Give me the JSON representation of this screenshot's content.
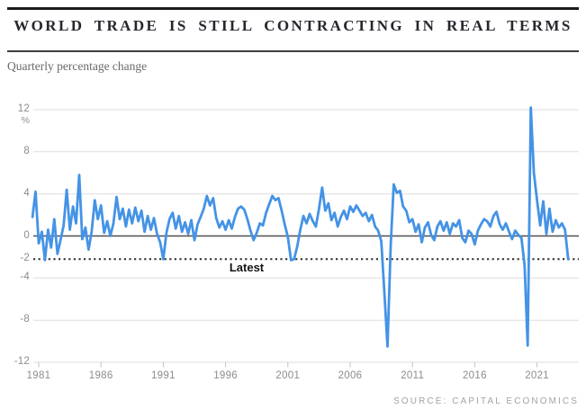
{
  "header": {
    "title": "WORLD TRADE IS STILL CONTRACTING IN REAL TERMS",
    "subtitle": "Quarterly percentage change"
  },
  "footer": {
    "source": "SOURCE: CAPITAL ECONOMICS"
  },
  "chart_data": {
    "type": "line",
    "title": "World trade is still contracting in real terms",
    "subtitle": "Quarterly percentage change",
    "xlabel": "",
    "ylabel": "%",
    "ylim": [
      -12,
      12
    ],
    "grid": true,
    "legend": "none",
    "x_axis": {
      "ticks": [
        1981,
        1986,
        1991,
        1996,
        2001,
        2006,
        2011,
        2016,
        2021
      ]
    },
    "y_axis": {
      "unit_label": "%",
      "ticks": [
        {
          "label": "12",
          "value": 12
        },
        {
          "label": "8",
          "value": 8
        },
        {
          "label": "4",
          "value": 4
        },
        {
          "label": "0",
          "value": 0
        },
        {
          "label": "-4",
          "value": -4
        },
        {
          "label": "-8",
          "value": -8
        },
        {
          "label": "-12",
          "value": -12
        }
      ]
    },
    "latest_line": {
      "value": -2.2,
      "axis_label": "-2",
      "label": "Latest"
    },
    "colors": {
      "line": "#4493e6",
      "grid": "#dedede",
      "zero_line": "#4f4f4f",
      "latest_line": "#2b2b2b",
      "tick": "#c3c3c3"
    },
    "x_start": 1980.5,
    "x_step_years": 0.25,
    "values": [
      1.8,
      4.2,
      -0.7,
      0.4,
      -2.3,
      0.6,
      -1.1,
      1.6,
      -1.7,
      -0.4,
      1.0,
      4.4,
      0.6,
      2.8,
      1.2,
      5.8,
      -0.3,
      0.8,
      -1.3,
      0.4,
      3.4,
      1.6,
      2.9,
      0.3,
      1.4,
      0.0,
      1.2,
      3.7,
      1.6,
      2.6,
      0.9,
      2.5,
      1.2,
      2.7,
      1.4,
      2.4,
      0.4,
      1.9,
      0.6,
      1.7,
      0.2,
      -0.6,
      -2.2,
      0.3,
      1.6,
      2.2,
      0.7,
      1.9,
      0.4,
      1.3,
      0.2,
      1.5,
      -0.4,
      1.1,
      1.8,
      2.6,
      3.8,
      2.9,
      3.6,
      1.7,
      0.8,
      1.4,
      0.6,
      1.5,
      0.7,
      1.8,
      2.6,
      2.8,
      2.5,
      1.6,
      0.5,
      -0.4,
      0.3,
      1.2,
      1.0,
      2.2,
      3.0,
      3.8,
      3.4,
      3.6,
      2.4,
      1.1,
      -0.1,
      -2.3,
      -2.2,
      -1.0,
      0.6,
      1.9,
      1.2,
      2.1,
      1.4,
      0.9,
      2.6,
      4.6,
      2.4,
      3.1,
      1.5,
      2.2,
      0.9,
      1.8,
      2.4,
      1.6,
      2.8,
      2.3,
      2.9,
      2.4,
      1.9,
      2.2,
      1.4,
      2.0,
      0.9,
      0.5,
      -0.5,
      -5.5,
      -10.5,
      -1.0,
      4.9,
      4.1,
      4.3,
      2.8,
      2.4,
      1.3,
      1.6,
      0.4,
      1.1,
      -0.6,
      0.8,
      1.3,
      0.1,
      -0.4,
      0.9,
      1.4,
      0.5,
      1.3,
      0.2,
      1.2,
      0.9,
      1.5,
      -0.2,
      -0.6,
      0.5,
      0.2,
      -0.8,
      0.5,
      1.1,
      1.6,
      1.4,
      0.9,
      1.9,
      2.3,
      1.1,
      0.6,
      1.2,
      0.4,
      -0.3,
      0.5,
      0.1,
      -0.2,
      -2.8,
      -10.4,
      12.2,
      6.0,
      3.4,
      1.0,
      3.3,
      0.2,
      2.6,
      0.4,
      1.5,
      0.8,
      1.2,
      0.6,
      -2.2
    ]
  }
}
